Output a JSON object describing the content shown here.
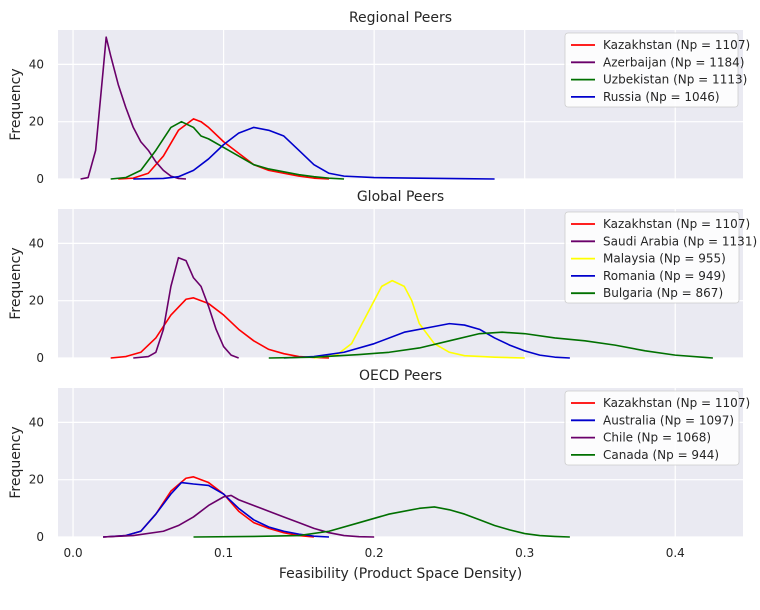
{
  "chart_data": {
    "type": "line",
    "xlabel": "Feasibility (Product Space Density)",
    "xlim": [
      -0.01,
      0.445
    ],
    "xticks": [
      0.0,
      0.1,
      0.2,
      0.3,
      0.4
    ],
    "xtick_labels": [
      "0.0",
      "0.1",
      "0.2",
      "0.3",
      "0.4"
    ],
    "grid": true,
    "legend_placement": "top-right",
    "panels": [
      {
        "title": "Regional Peers",
        "ylabel": "Frequency",
        "ylim": [
          0,
          52
        ],
        "yticks": [
          0,
          20,
          40
        ],
        "series": [
          {
            "name": "Kazakhstan (Np = 1107)",
            "color": "#ff0000",
            "points": [
              [
                0.03,
                0
              ],
              [
                0.04,
                0.3
              ],
              [
                0.05,
                2
              ],
              [
                0.06,
                8
              ],
              [
                0.07,
                17
              ],
              [
                0.08,
                21
              ],
              [
                0.085,
                20
              ],
              [
                0.09,
                18
              ],
              [
                0.1,
                13
              ],
              [
                0.11,
                9
              ],
              [
                0.12,
                5
              ],
              [
                0.13,
                3
              ],
              [
                0.14,
                2
              ],
              [
                0.15,
                1
              ],
              [
                0.16,
                0.3
              ],
              [
                0.17,
                0
              ]
            ]
          },
          {
            "name": "Azerbaijan (Np = 1184)",
            "color": "#6a006a",
            "points": [
              [
                0.005,
                0
              ],
              [
                0.01,
                0.5
              ],
              [
                0.015,
                10
              ],
              [
                0.02,
                38
              ],
              [
                0.022,
                49.5
              ],
              [
                0.025,
                43
              ],
              [
                0.03,
                33
              ],
              [
                0.035,
                25
              ],
              [
                0.04,
                18
              ],
              [
                0.045,
                13
              ],
              [
                0.05,
                10
              ],
              [
                0.055,
                6
              ],
              [
                0.06,
                3
              ],
              [
                0.065,
                1
              ],
              [
                0.07,
                0.2
              ],
              [
                0.075,
                0
              ]
            ]
          },
          {
            "name": "Uzbekistan (Np = 1113)",
            "color": "#007000",
            "points": [
              [
                0.025,
                0
              ],
              [
                0.035,
                0.5
              ],
              [
                0.045,
                3
              ],
              [
                0.055,
                10
              ],
              [
                0.065,
                18
              ],
              [
                0.072,
                20
              ],
              [
                0.08,
                18
              ],
              [
                0.085,
                15
              ],
              [
                0.09,
                14
              ],
              [
                0.1,
                11
              ],
              [
                0.11,
                8
              ],
              [
                0.12,
                5
              ],
              [
                0.13,
                3.5
              ],
              [
                0.14,
                2.5
              ],
              [
                0.15,
                1.5
              ],
              [
                0.16,
                0.8
              ],
              [
                0.17,
                0.3
              ],
              [
                0.18,
                0
              ]
            ]
          },
          {
            "name": "Russia (Np = 1046)",
            "color": "#0000cc",
            "points": [
              [
                0.04,
                0
              ],
              [
                0.06,
                0.2
              ],
              [
                0.07,
                0.8
              ],
              [
                0.08,
                3
              ],
              [
                0.09,
                7
              ],
              [
                0.1,
                12
              ],
              [
                0.11,
                16
              ],
              [
                0.12,
                18
              ],
              [
                0.13,
                17
              ],
              [
                0.14,
                15
              ],
              [
                0.15,
                10
              ],
              [
                0.16,
                5
              ],
              [
                0.17,
                2
              ],
              [
                0.18,
                1
              ],
              [
                0.2,
                0.5
              ],
              [
                0.23,
                0.3
              ],
              [
                0.26,
                0.1
              ],
              [
                0.28,
                0
              ]
            ]
          }
        ]
      },
      {
        "title": "Global Peers",
        "ylabel": "Frequency",
        "ylim": [
          0,
          52
        ],
        "yticks": [
          0,
          20,
          40
        ],
        "series": [
          {
            "name": "Kazakhstan (Np = 1107)",
            "color": "#ff0000",
            "points": [
              [
                0.025,
                0
              ],
              [
                0.035,
                0.5
              ],
              [
                0.045,
                2
              ],
              [
                0.055,
                7
              ],
              [
                0.065,
                15
              ],
              [
                0.075,
                20.5
              ],
              [
                0.08,
                21
              ],
              [
                0.09,
                19
              ],
              [
                0.1,
                15
              ],
              [
                0.11,
                10
              ],
              [
                0.12,
                6
              ],
              [
                0.13,
                3
              ],
              [
                0.14,
                1.5
              ],
              [
                0.15,
                0.5
              ],
              [
                0.16,
                0.2
              ],
              [
                0.17,
                0
              ]
            ]
          },
          {
            "name": "Saudi Arabia (Np = 1131)",
            "color": "#6a006a",
            "points": [
              [
                0.04,
                0
              ],
              [
                0.05,
                0.5
              ],
              [
                0.055,
                2
              ],
              [
                0.06,
                10
              ],
              [
                0.065,
                25
              ],
              [
                0.07,
                35
              ],
              [
                0.075,
                34
              ],
              [
                0.08,
                28
              ],
              [
                0.085,
                25
              ],
              [
                0.09,
                18
              ],
              [
                0.095,
                10
              ],
              [
                0.1,
                4
              ],
              [
                0.105,
                1
              ],
              [
                0.11,
                0
              ]
            ]
          },
          {
            "name": "Malaysia (Np = 955)",
            "color": "#ffff00",
            "points": [
              [
                0.16,
                0
              ],
              [
                0.175,
                1
              ],
              [
                0.185,
                5
              ],
              [
                0.195,
                15
              ],
              [
                0.205,
                25
              ],
              [
                0.212,
                27
              ],
              [
                0.22,
                25
              ],
              [
                0.225,
                20
              ],
              [
                0.23,
                12
              ],
              [
                0.24,
                5
              ],
              [
                0.25,
                2
              ],
              [
                0.26,
                0.8
              ],
              [
                0.28,
                0.3
              ],
              [
                0.3,
                0
              ]
            ]
          },
          {
            "name": "Romania (Np = 949)",
            "color": "#0000cc",
            "points": [
              [
                0.14,
                0
              ],
              [
                0.16,
                0.5
              ],
              [
                0.18,
                2
              ],
              [
                0.2,
                5
              ],
              [
                0.22,
                9
              ],
              [
                0.24,
                11
              ],
              [
                0.25,
                12
              ],
              [
                0.26,
                11.5
              ],
              [
                0.27,
                10
              ],
              [
                0.28,
                7
              ],
              [
                0.29,
                4.5
              ],
              [
                0.3,
                2.5
              ],
              [
                0.31,
                1
              ],
              [
                0.32,
                0.3
              ],
              [
                0.33,
                0
              ]
            ]
          },
          {
            "name": "Bulgaria (Np = 867)",
            "color": "#007000",
            "points": [
              [
                0.13,
                0
              ],
              [
                0.16,
                0.3
              ],
              [
                0.19,
                1.2
              ],
              [
                0.21,
                2
              ],
              [
                0.23,
                3.5
              ],
              [
                0.25,
                6
              ],
              [
                0.27,
                8.5
              ],
              [
                0.285,
                9
              ],
              [
                0.3,
                8.5
              ],
              [
                0.32,
                7
              ],
              [
                0.34,
                6
              ],
              [
                0.36,
                4.5
              ],
              [
                0.38,
                2.5
              ],
              [
                0.4,
                1
              ],
              [
                0.42,
                0.2
              ],
              [
                0.425,
                0
              ]
            ]
          }
        ]
      },
      {
        "title": "OECD Peers",
        "ylabel": "Frequency",
        "ylim": [
          0,
          52
        ],
        "yticks": [
          0,
          20,
          40
        ],
        "series": [
          {
            "name": "Kazakhstan (Np = 1107)",
            "color": "#ff0000",
            "points": [
              [
                0.02,
                0
              ],
              [
                0.035,
                0.5
              ],
              [
                0.045,
                2
              ],
              [
                0.055,
                8
              ],
              [
                0.065,
                16
              ],
              [
                0.075,
                20.5
              ],
              [
                0.08,
                21
              ],
              [
                0.09,
                19
              ],
              [
                0.1,
                15
              ],
              [
                0.11,
                9
              ],
              [
                0.12,
                5
              ],
              [
                0.13,
                3
              ],
              [
                0.14,
                1.5
              ],
              [
                0.15,
                0.5
              ],
              [
                0.16,
                0
              ]
            ]
          },
          {
            "name": "Australia (Np = 1097)",
            "color": "#0000cc",
            "points": [
              [
                0.02,
                0
              ],
              [
                0.035,
                0.5
              ],
              [
                0.045,
                2
              ],
              [
                0.055,
                8
              ],
              [
                0.065,
                15
              ],
              [
                0.072,
                19
              ],
              [
                0.08,
                18.5
              ],
              [
                0.09,
                18
              ],
              [
                0.1,
                15
              ],
              [
                0.11,
                10
              ],
              [
                0.12,
                6
              ],
              [
                0.13,
                3.5
              ],
              [
                0.14,
                2
              ],
              [
                0.15,
                1
              ],
              [
                0.16,
                0.3
              ],
              [
                0.17,
                0
              ]
            ]
          },
          {
            "name": "Chile (Np = 1068)",
            "color": "#6a006a",
            "points": [
              [
                0.02,
                0
              ],
              [
                0.04,
                0.5
              ],
              [
                0.06,
                2
              ],
              [
                0.07,
                4
              ],
              [
                0.08,
                7
              ],
              [
                0.09,
                11
              ],
              [
                0.1,
                14
              ],
              [
                0.105,
                14.5
              ],
              [
                0.11,
                13
              ],
              [
                0.12,
                11
              ],
              [
                0.13,
                9
              ],
              [
                0.14,
                7
              ],
              [
                0.15,
                5
              ],
              [
                0.16,
                3
              ],
              [
                0.17,
                1.5
              ],
              [
                0.18,
                0.5
              ],
              [
                0.19,
                0.1
              ],
              [
                0.2,
                0
              ]
            ]
          },
          {
            "name": "Canada (Np = 944)",
            "color": "#007000",
            "points": [
              [
                0.08,
                0
              ],
              [
                0.12,
                0.2
              ],
              [
                0.15,
                0.5
              ],
              [
                0.17,
                2
              ],
              [
                0.19,
                5
              ],
              [
                0.21,
                8
              ],
              [
                0.23,
                10
              ],
              [
                0.24,
                10.5
              ],
              [
                0.25,
                9.5
              ],
              [
                0.26,
                8
              ],
              [
                0.27,
                6
              ],
              [
                0.28,
                4
              ],
              [
                0.29,
                2.5
              ],
              [
                0.3,
                1.2
              ],
              [
                0.31,
                0.5
              ],
              [
                0.32,
                0.2
              ],
              [
                0.33,
                0
              ]
            ]
          }
        ]
      }
    ]
  }
}
